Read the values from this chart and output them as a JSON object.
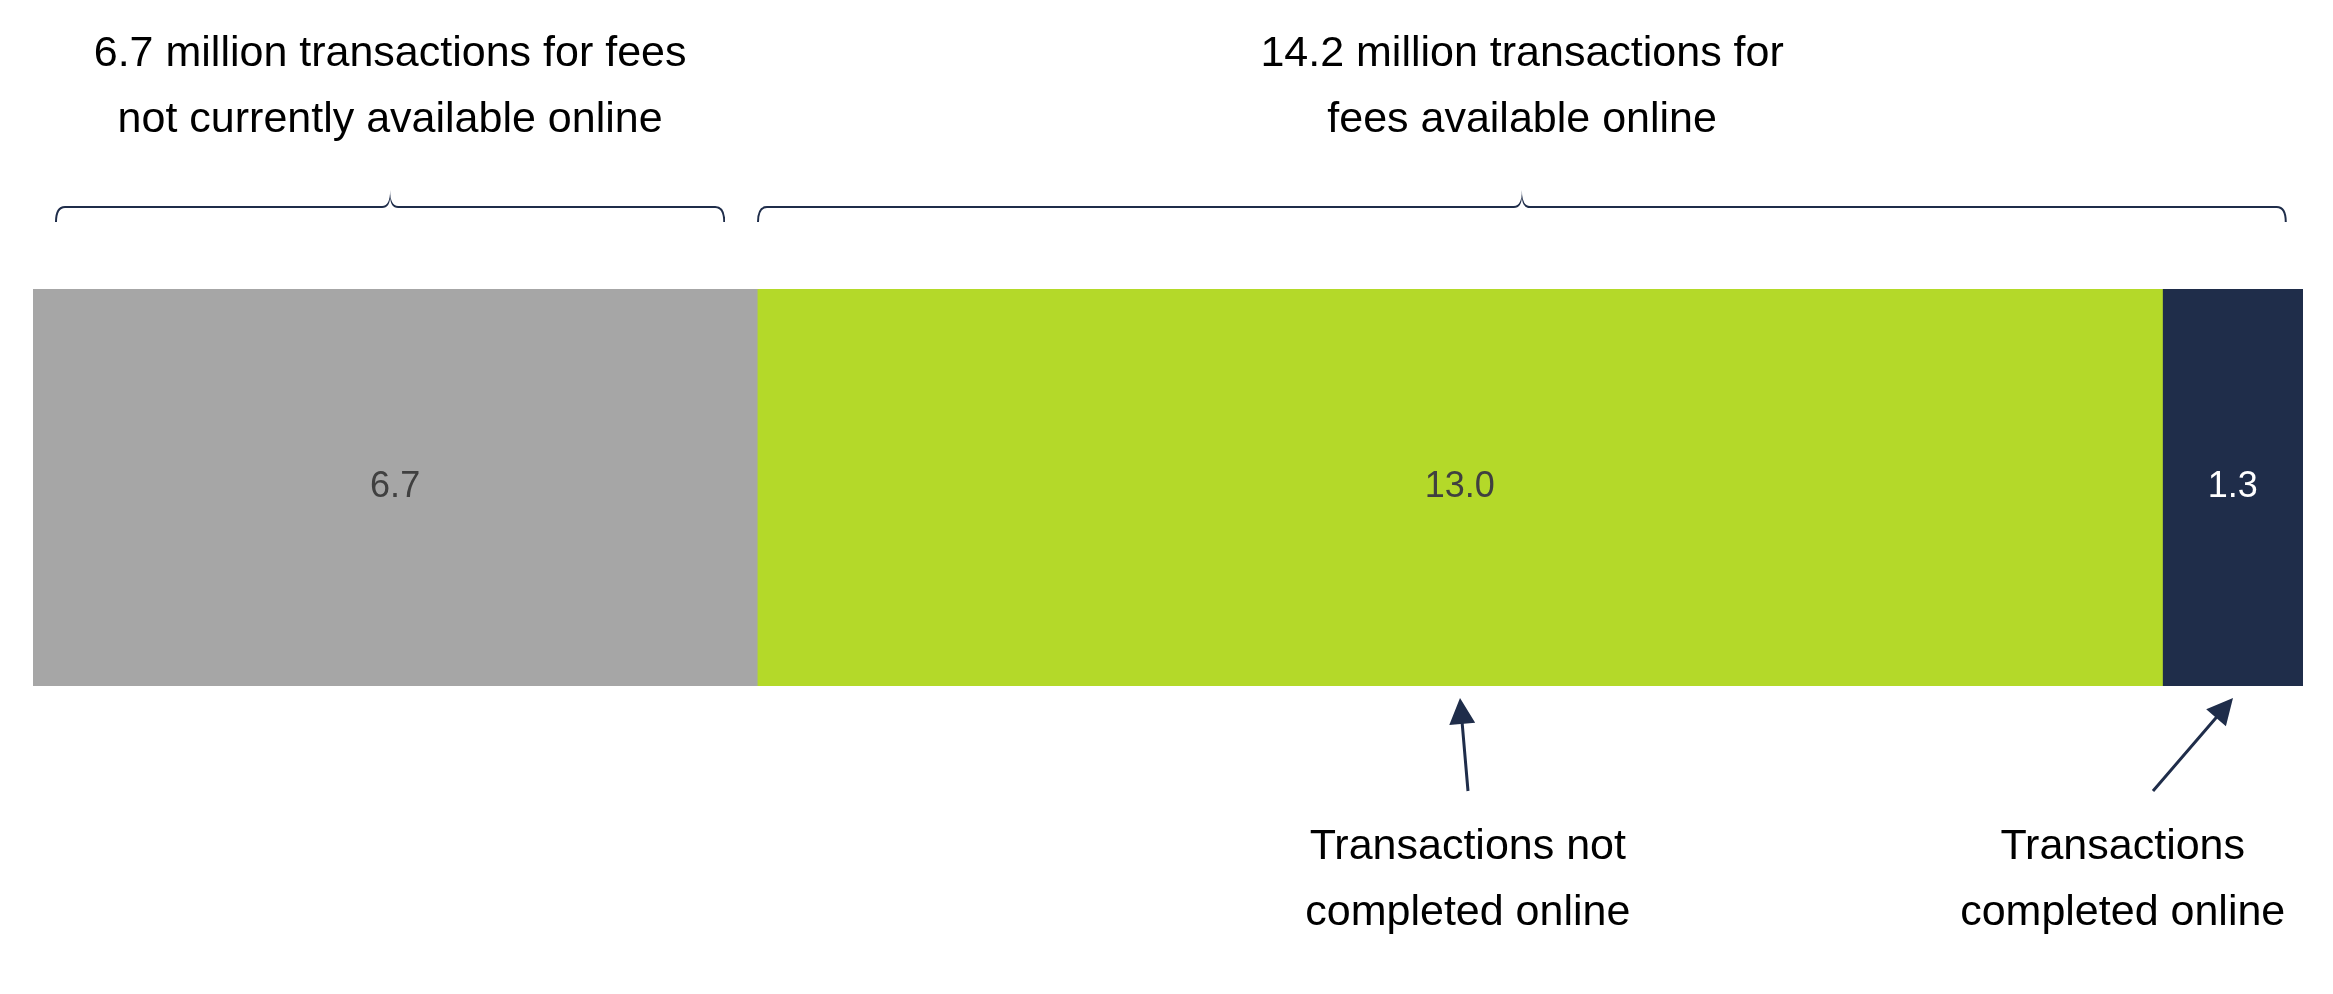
{
  "chart_data": {
    "type": "bar",
    "orientation": "horizontal",
    "stacked": true,
    "categories": [
      null
    ],
    "series": [
      {
        "color": "#a6a6a6",
        "values": [
          6.7
        ],
        "value_labels": [
          "6.7"
        ]
      },
      {
        "color": "#b4d929",
        "values": [
          13.0
        ],
        "value_labels": [
          "13.0"
        ]
      },
      {
        "color": "#1f2d4a",
        "values": [
          1.3
        ],
        "value_labels": [
          "1.3"
        ]
      }
    ],
    "tick_labels": false,
    "legend": false,
    "annotations": [
      "6.7 million transactions for fees not currently available online",
      "14.2 million transactions for fees available online",
      "Transactions not completed online",
      "Transactions completed online"
    ]
  }
}
